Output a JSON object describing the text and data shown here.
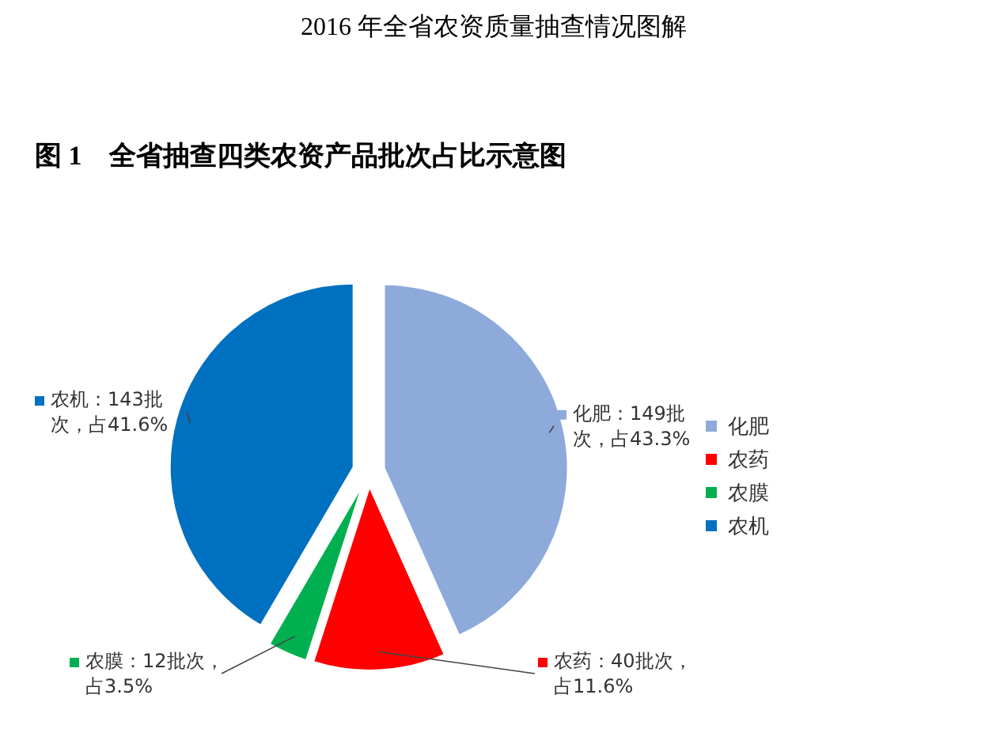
{
  "chart_data": {
    "type": "pie",
    "title": "2016 年全省农资质量抽查情况图解",
    "subtitle": "图 1　全省抽查四类农资产品批次占比示意图",
    "categories": [
      "化肥",
      "农药",
      "农膜",
      "农机"
    ],
    "values": [
      149,
      40,
      12,
      143
    ],
    "colors": [
      "#8eaadb",
      "#ff0000",
      "#00b050",
      "#0070c0"
    ],
    "value_labels": [
      "化肥：149批次，占43.3%",
      "农药：40批次，占11.6%",
      "农膜：12批次，占3.5%",
      "农机：143批次，占41.6%"
    ],
    "legend": "right"
  }
}
